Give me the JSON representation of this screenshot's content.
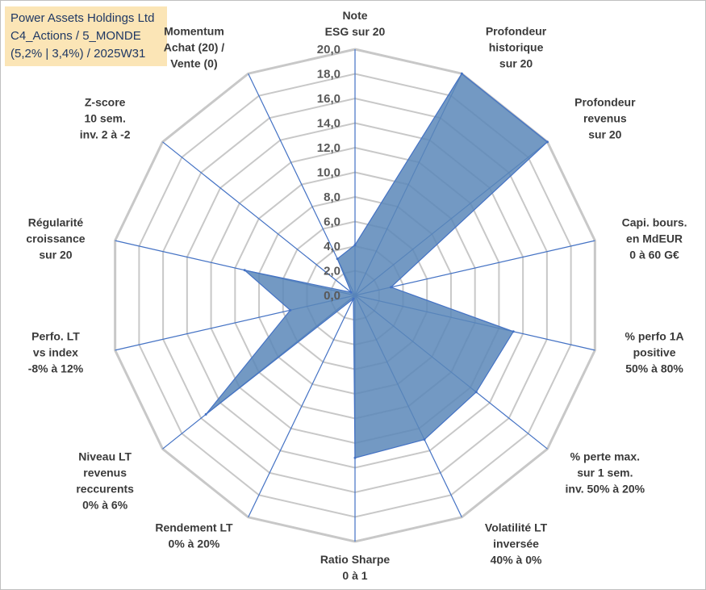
{
  "title": {
    "line1": "Power Assets Holdings Ltd",
    "line2": "C4_Actions / 5_MONDE",
    "line3": "(5,2% | 3,4%) / 2025W31"
  },
  "colors": {
    "fill": "#5b87b9",
    "stroke": "#4472c4",
    "grid": "#c8c8c8",
    "spoke": "#4472c4",
    "title_bg": "#fbe5b6",
    "title_text": "#1f3864"
  },
  "chart_data": {
    "type": "radar",
    "rmin": 0,
    "rmax": 20,
    "tick_step": 2,
    "tick_labels": [
      "0,0",
      "2,0",
      "4,0",
      "6,0",
      "8,0",
      "10,0",
      "12,0",
      "14,0",
      "16,0",
      "18,0",
      "20,0"
    ],
    "axes": [
      [
        "Note",
        "ESG sur 20"
      ],
      [
        "Profondeur",
        "historique",
        "sur 20"
      ],
      [
        "Profondeur",
        "revenus",
        "sur 20"
      ],
      [
        "Capi. bours.",
        "en MdEUR",
        "0 à 60 G€"
      ],
      [
        "% perfo 1A",
        "positive",
        "50% à 80%"
      ],
      [
        "% perte max.",
        "sur 1 sem.",
        "inv. 50% à 20%"
      ],
      [
        "Volatilité LT",
        "inversée",
        "40% à 0%"
      ],
      [
        "Ratio Sharpe",
        "0 à 1"
      ],
      [
        "Rendement LT",
        "0% à 20%"
      ],
      [
        "Niveau LT",
        "revenus",
        "reccurents",
        "0% à 6%"
      ],
      [
        "Perfo. LT",
        "vs index",
        "-8% à 12%"
      ],
      [
        "Régularité",
        "croissance",
        "sur 20"
      ],
      [
        "Z-score",
        "10 sem.",
        "inv. 2 à -2"
      ],
      [
        "Momentum",
        "Achat (20) /",
        "Vente (0)"
      ]
    ],
    "values": [
      4.1,
      20.0,
      20.0,
      3.0,
      13.2,
      12.6,
      13.0,
      13.2,
      0.3,
      15.5,
      5.4,
      9.2,
      0.4,
      3.3
    ]
  }
}
